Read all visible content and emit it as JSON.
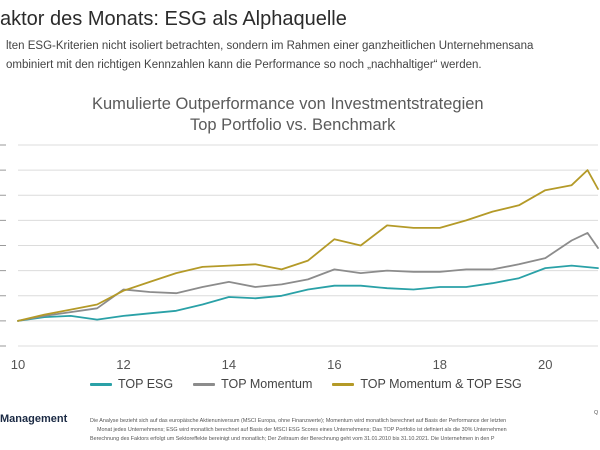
{
  "header": {
    "title": "aktor des Monats: ESG als Alphaquelle",
    "subtitle_line1": "lten ESG-Kriterien nicht isoliert betrachten, sondern im Rahmen einer ganzheitlichen Unternehmensana",
    "subtitle_line2": "ombiniert mit den richtigen Kennzahlen kann die Performance so noch „nachhaltiger“ werden."
  },
  "chart_data": {
    "type": "line",
    "title": "Kumulierte Outperformance von Investmentstrategien",
    "subtitle": "Top Portfolio vs. Benchmark",
    "xlabel": "",
    "ylabel": "",
    "xlim": [
      10,
      21
    ],
    "ylim": [
      -0.2,
      1.4
    ],
    "x_ticks": [
      10,
      12,
      14,
      16,
      18,
      20
    ],
    "grid": true,
    "legend_position": "bottom",
    "series": [
      {
        "name": "TOP ESG",
        "color": "#2aa1a7",
        "x": [
          10,
          10.5,
          11,
          11.5,
          12,
          12.5,
          13,
          13.5,
          14,
          14.5,
          15,
          15.5,
          16,
          16.5,
          17,
          17.5,
          18,
          18.5,
          19,
          19.5,
          20,
          20.5,
          21
        ],
        "y": [
          0.0,
          0.03,
          0.04,
          0.01,
          0.04,
          0.06,
          0.08,
          0.13,
          0.19,
          0.18,
          0.2,
          0.25,
          0.28,
          0.28,
          0.26,
          0.25,
          0.27,
          0.27,
          0.3,
          0.34,
          0.42,
          0.44,
          0.42
        ]
      },
      {
        "name": "TOP Momentum",
        "color": "#8c8c8c",
        "x": [
          10,
          10.5,
          11,
          11.5,
          12,
          12.5,
          13,
          13.5,
          14,
          14.5,
          15,
          15.5,
          16,
          16.5,
          17,
          17.5,
          18,
          18.5,
          19,
          19.5,
          20,
          20.5,
          20.8,
          21
        ],
        "y": [
          0.0,
          0.04,
          0.07,
          0.1,
          0.25,
          0.23,
          0.22,
          0.27,
          0.31,
          0.27,
          0.29,
          0.33,
          0.41,
          0.38,
          0.4,
          0.39,
          0.39,
          0.41,
          0.41,
          0.45,
          0.5,
          0.64,
          0.7,
          0.58
        ]
      },
      {
        "name": "TOP Momentum & TOP ESG",
        "color": "#b49a28",
        "x": [
          10,
          10.5,
          11,
          11.5,
          12,
          12.5,
          13,
          13.5,
          14,
          14.5,
          15,
          15.5,
          16,
          16.5,
          17,
          17.5,
          18,
          18.5,
          19,
          19.5,
          20,
          20.5,
          20.8,
          21
        ],
        "y": [
          0.0,
          0.05,
          0.09,
          0.13,
          0.24,
          0.31,
          0.38,
          0.43,
          0.44,
          0.45,
          0.41,
          0.48,
          0.65,
          0.6,
          0.76,
          0.74,
          0.74,
          0.8,
          0.87,
          0.92,
          1.04,
          1.08,
          1.2,
          1.05
        ]
      }
    ]
  },
  "footer": {
    "logo": "Management",
    "source_label": "Q",
    "notes": [
      "Die Analyse bezieht sich auf das europäische Aktienuniversum (MSCI Europa, ohne Finanzwerte); Momentum wird monatlich berechnet auf Basis der Performance der letzten",
      "Monat jedes Unternehmens; ESG wird monatlich berechnet auf Basis der MSCI ESG Scores eines Unternehmens; Das TOP Portfolio ist definiert als die 30% Unternehmen",
      "Berechnung des Faktors erfolgt um Sektoreffekte bereinigt und monatlich; Der Zeitraum der Berechnung geht vom 31.01.2010 bis 31.10.2021. Die Unternehmen in den P"
    ]
  }
}
